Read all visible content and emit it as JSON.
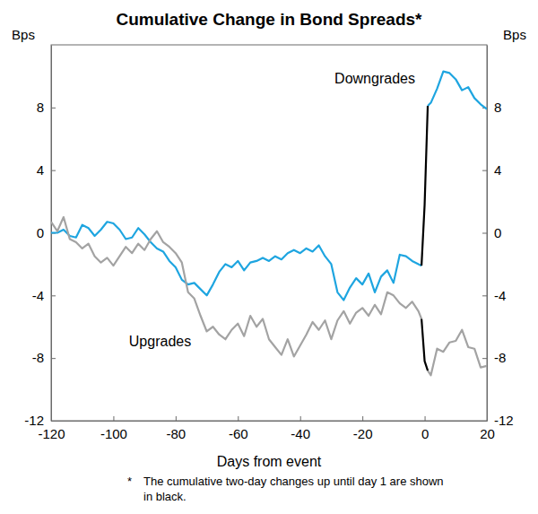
{
  "chart_data": {
    "type": "line",
    "title": "Cumulative Change in Bond Spreads*",
    "x_label": "Days from event",
    "y_label": "Bps",
    "y2_label": "Bps",
    "footnote_marker": "*",
    "footnote": [
      "The cumulative two-day changes up until day 1 are shown",
      "in black."
    ],
    "xlim": [
      -120,
      20
    ],
    "xticks": [
      -120,
      -100,
      -80,
      -60,
      -40,
      -20,
      0,
      20
    ],
    "ylim": [
      -12,
      12
    ],
    "yticks": [
      -12,
      -8,
      -4,
      0,
      4,
      8
    ],
    "y2lim": [
      -12,
      12
    ],
    "y2ticks": [
      -12,
      -8,
      -4,
      0,
      4,
      8
    ],
    "x": [
      -120,
      -118,
      -116,
      -114,
      -112,
      -110,
      -108,
      -106,
      -104,
      -102,
      -100,
      -98,
      -96,
      -94,
      -92,
      -90,
      -88,
      -86,
      -84,
      -82,
      -80,
      -78,
      -76,
      -74,
      -72,
      -70,
      -68,
      -66,
      -64,
      -62,
      -60,
      -58,
      -56,
      -54,
      -52,
      -50,
      -48,
      -46,
      -44,
      -42,
      -40,
      -38,
      -36,
      -34,
      -32,
      -30,
      -28,
      -26,
      -24,
      -22,
      -20,
      -18,
      -16,
      -14,
      -12,
      -10,
      -8,
      -6,
      -4,
      -2,
      -1,
      0,
      1,
      2,
      4,
      6,
      8,
      10,
      12,
      14,
      16,
      18,
      20
    ],
    "series": [
      {
        "name": "Downgrades",
        "color": "#1ea5e0",
        "values": [
          0.0,
          0.0,
          0.2,
          -0.2,
          -0.3,
          0.5,
          0.3,
          -0.2,
          0.2,
          0.7,
          0.6,
          0.2,
          -0.4,
          -0.3,
          0.3,
          -0.1,
          -0.6,
          -1.0,
          -1.2,
          -1.8,
          -2.2,
          -3.0,
          -3.3,
          -3.2,
          -3.6,
          -4.0,
          -3.3,
          -2.5,
          -2.0,
          -2.2,
          -1.8,
          -2.4,
          -1.9,
          -1.8,
          -1.6,
          -1.8,
          -1.5,
          -1.7,
          -1.3,
          -1.1,
          -1.3,
          -1.0,
          -1.2,
          -0.8,
          -1.5,
          -2.0,
          -3.8,
          -4.3,
          -3.5,
          -2.9,
          -3.3,
          -2.6,
          -3.8,
          -2.8,
          -2.4,
          -3.2,
          -1.4,
          -1.5,
          -1.8,
          -2.0,
          -2.1,
          null,
          8.1,
          8.3,
          9.2,
          10.3,
          10.2,
          9.8,
          9.1,
          9.3,
          8.6,
          8.2,
          7.9
        ]
      },
      {
        "name": "Upgrades",
        "color": "#a3a3a3",
        "values": [
          0.7,
          0.1,
          1.0,
          -0.4,
          -0.6,
          -1.0,
          -0.7,
          -1.5,
          -1.9,
          -1.6,
          -2.1,
          -1.5,
          -0.9,
          -1.3,
          -0.7,
          -1.1,
          -0.4,
          0.1,
          -0.6,
          -0.9,
          -1.3,
          -1.9,
          -3.8,
          -4.2,
          -5.3,
          -6.3,
          -6.0,
          -6.5,
          -6.8,
          -6.2,
          -5.8,
          -6.6,
          -5.3,
          -6.0,
          -5.5,
          -6.8,
          -7.3,
          -7.8,
          -6.8,
          -7.9,
          -7.2,
          -6.5,
          -5.7,
          -6.2,
          -5.6,
          -6.8,
          -5.6,
          -5.0,
          -5.8,
          -5.1,
          -4.8,
          -5.3,
          -4.6,
          -5.2,
          -3.8,
          -4.0,
          -4.5,
          -4.8,
          -4.4,
          -5.0,
          -5.5,
          null,
          -8.8,
          -9.1,
          -7.4,
          -7.6,
          -7.0,
          -6.9,
          -6.2,
          -7.3,
          -7.4,
          -8.6,
          -8.5
        ]
      },
      {
        "color": "#000000",
        "values": [
          null,
          null,
          null,
          null,
          null,
          null,
          null,
          null,
          null,
          null,
          null,
          null,
          null,
          null,
          null,
          null,
          null,
          null,
          null,
          null,
          null,
          null,
          null,
          null,
          null,
          null,
          null,
          null,
          null,
          null,
          null,
          null,
          null,
          null,
          null,
          null,
          null,
          null,
          null,
          null,
          null,
          null,
          null,
          null,
          null,
          null,
          null,
          null,
          null,
          null,
          null,
          null,
          null,
          null,
          null,
          null,
          null,
          null,
          null,
          null,
          -2.1,
          1.8,
          8.1,
          null,
          null,
          null,
          null,
          null,
          null,
          null,
          null,
          null,
          null
        ]
      },
      {
        "color": "#000000",
        "values": [
          null,
          null,
          null,
          null,
          null,
          null,
          null,
          null,
          null,
          null,
          null,
          null,
          null,
          null,
          null,
          null,
          null,
          null,
          null,
          null,
          null,
          null,
          null,
          null,
          null,
          null,
          null,
          null,
          null,
          null,
          null,
          null,
          null,
          null,
          null,
          null,
          null,
          null,
          null,
          null,
          null,
          null,
          null,
          null,
          null,
          null,
          null,
          null,
          null,
          null,
          null,
          null,
          null,
          null,
          null,
          null,
          null,
          null,
          null,
          null,
          -5.5,
          -8.2,
          -8.8,
          null,
          null,
          null,
          null,
          null,
          null,
          null,
          null,
          null,
          null
        ]
      }
    ],
    "annotations": [
      {
        "text": "Downgrades",
        "x": -16,
        "y": 9.8
      },
      {
        "text": "Upgrades",
        "x": -85,
        "y": -7.0
      }
    ]
  }
}
